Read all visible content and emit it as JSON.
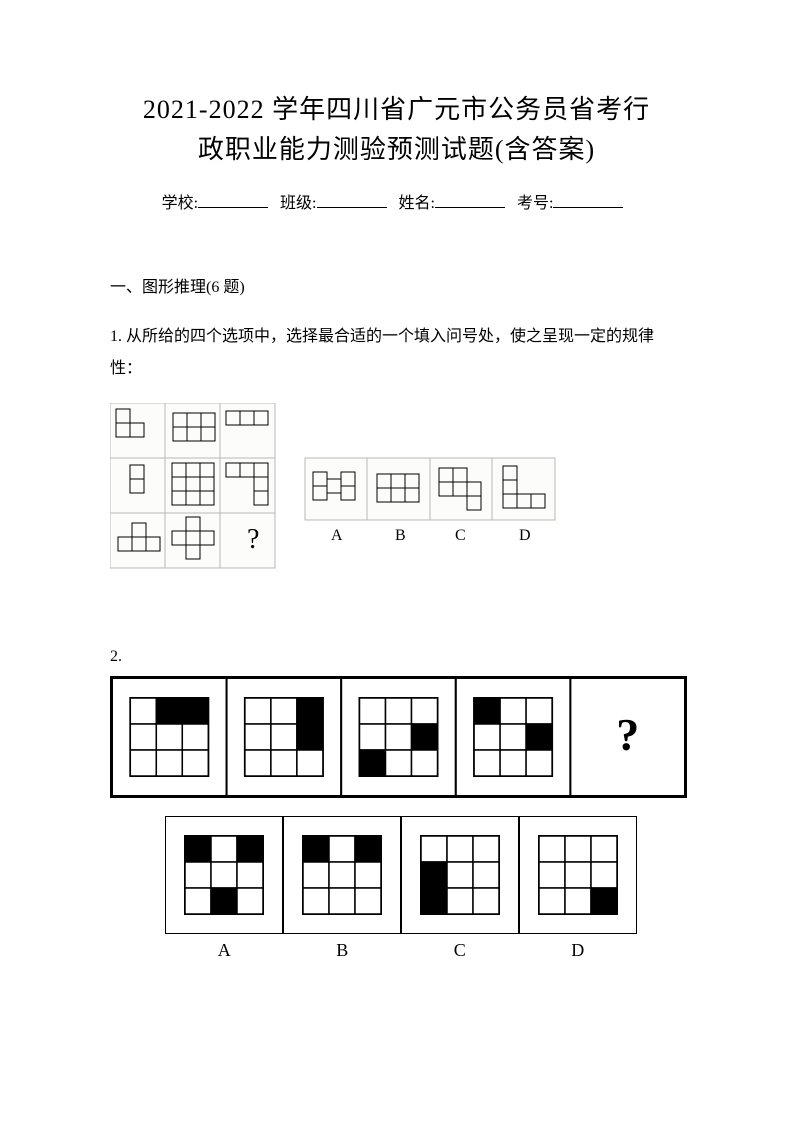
{
  "title_line1": "2021-2022 学年四川省广元市公务员省考行",
  "title_line2": "政职业能力测验预测试题(含答案)",
  "fields": {
    "school": "学校:",
    "class": "班级:",
    "name": "姓名:",
    "examno": "考号:"
  },
  "section": "一、图形推理(6 题)",
  "q1": {
    "num": "1.",
    "text": "从所给的四个选项中，选择最合适的一个填入问号处，使之呈现一定的规律性：",
    "options": [
      "A",
      "B",
      "C",
      "D"
    ]
  },
  "q2": {
    "num": "2.",
    "options": [
      "A",
      "B",
      "C",
      "D"
    ],
    "sequence": [
      [
        [
          0,
          1,
          1
        ],
        [
          0,
          0,
          0
        ],
        [
          0,
          0,
          0
        ]
      ],
      [
        [
          0,
          0,
          1
        ],
        [
          0,
          0,
          1
        ],
        [
          0,
          0,
          0
        ]
      ],
      [
        [
          0,
          0,
          0
        ],
        [
          0,
          0,
          1
        ],
        [
          1,
          0,
          0
        ]
      ],
      [
        [
          1,
          0,
          0
        ],
        [
          0,
          0,
          1
        ],
        [
          0,
          0,
          0
        ]
      ]
    ],
    "answers": [
      [
        [
          1,
          0,
          1
        ],
        [
          0,
          0,
          0
        ],
        [
          0,
          1,
          0
        ]
      ],
      [
        [
          1,
          0,
          1
        ],
        [
          0,
          0,
          0
        ],
        [
          0,
          0,
          0
        ]
      ],
      [
        [
          0,
          0,
          0
        ],
        [
          1,
          0,
          0
        ],
        [
          1,
          0,
          0
        ]
      ],
      [
        [
          0,
          0,
          0
        ],
        [
          0,
          0,
          0
        ],
        [
          0,
          0,
          1
        ]
      ]
    ],
    "colors": {
      "fill": "#000000",
      "empty": "#ffffff",
      "line": "#000000",
      "outer": "#000000"
    }
  },
  "style": {
    "page_bg": "#ffffff",
    "text_color": "#000000",
    "title_fontsize": 26,
    "body_fontsize": 16
  }
}
